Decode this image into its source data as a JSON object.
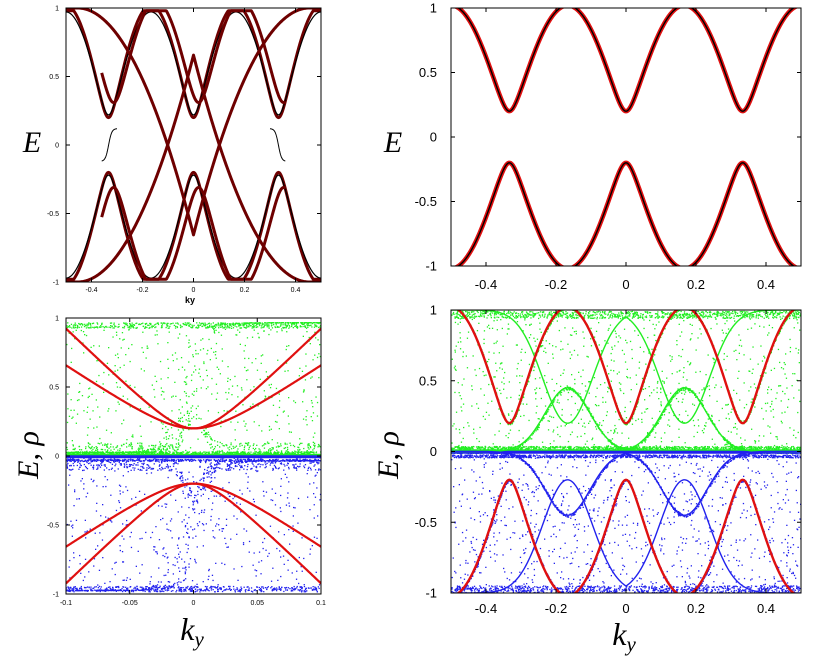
{
  "colors": {
    "bands_dark": "#6e0000",
    "bands_black": "#000000",
    "red": "#e01010",
    "green": "#22ee22",
    "blue": "#2222ee"
  },
  "chart_data": [
    {
      "id": "top-left",
      "type": "line",
      "title": "",
      "xlabel": "k_y",
      "ylabel": "E",
      "xlim": [
        -0.5,
        0.5
      ],
      "ylim": [
        -1,
        1
      ],
      "x_ticks": [
        -0.4,
        -0.2,
        0,
        0.2,
        0.4
      ],
      "x_tick_labels": [
        "-0.4",
        "-0.2",
        "0",
        "0.2",
        "0.4"
      ],
      "y_ticks": [
        -1,
        -0.5,
        0,
        0.5,
        1
      ],
      "y_tick_labels": [
        "-1",
        "-0.5",
        "0",
        "0.5",
        "1"
      ],
      "gap": 0.2,
      "series": [
        {
          "name": "bands (dark red)",
          "color": "#6e0000"
        },
        {
          "name": "bands (black)",
          "color": "#000000"
        }
      ]
    },
    {
      "id": "top-right",
      "type": "line",
      "title": "",
      "xlabel": "",
      "ylabel": "E",
      "xlim": [
        -0.5,
        0.5
      ],
      "ylim": [
        -1,
        1
      ],
      "x_ticks": [
        -0.4,
        -0.2,
        0,
        0.2,
        0.4
      ],
      "x_tick_labels": [
        "-0.4",
        "-0.2",
        "0",
        "0.2",
        "0.4"
      ],
      "y_ticks": [
        -1,
        -0.5,
        0,
        0.5,
        1
      ],
      "y_tick_labels": [
        "-1",
        "-0.5",
        "0",
        "0.5",
        "1"
      ],
      "gap": 0.2,
      "series": [
        {
          "name": "edge bands (red)",
          "color": "#e01010"
        },
        {
          "name": "edge bands (black)",
          "color": "#000000"
        }
      ]
    },
    {
      "id": "bottom-left",
      "type": "scatter",
      "title": "",
      "xlabel": "",
      "ylabel": "E, ρ",
      "xlim": [
        -0.1,
        0.1
      ],
      "ylim": [
        -1,
        1
      ],
      "x_ticks": [
        -0.1,
        -0.05,
        0,
        0.05,
        0.1
      ],
      "x_tick_labels": [
        "-0.1",
        "-0.05",
        "0",
        "0.05",
        "0.1"
      ],
      "y_ticks": [
        -1,
        -0.5,
        0,
        0.5,
        1
      ],
      "y_tick_labels": [
        "-1",
        "-0.5",
        "0",
        "0.5",
        "1"
      ],
      "gap": 0.2,
      "series": [
        {
          "name": "bands",
          "color": "#e01010"
        },
        {
          "name": "density (upper)",
          "color": "#22ee22"
        },
        {
          "name": "density (lower)",
          "color": "#2222ee"
        }
      ]
    },
    {
      "id": "bottom-right",
      "type": "scatter",
      "title": "",
      "xlabel": "k_y",
      "ylabel": "E, ρ",
      "xlim": [
        -0.5,
        0.5
      ],
      "ylim": [
        -1,
        1
      ],
      "x_ticks": [
        -0.4,
        -0.2,
        0,
        0.2,
        0.4
      ],
      "x_tick_labels": [
        "-0.4",
        "-0.2",
        "0",
        "0.2",
        "0.4"
      ],
      "y_ticks": [
        -1,
        -0.5,
        0,
        0.5,
        1
      ],
      "y_tick_labels": [
        "-1",
        "-0.5",
        "0",
        "0.5",
        "1"
      ],
      "gap": 0.2,
      "series": [
        {
          "name": "bands",
          "color": "#e01010"
        },
        {
          "name": "density (upper)",
          "color": "#22ee22"
        },
        {
          "name": "density (lower)",
          "color": "#2222ee"
        }
      ]
    }
  ],
  "labels": {
    "ky_small": "ky",
    "ky_big_k": "k",
    "ky_big_sub": "y"
  }
}
